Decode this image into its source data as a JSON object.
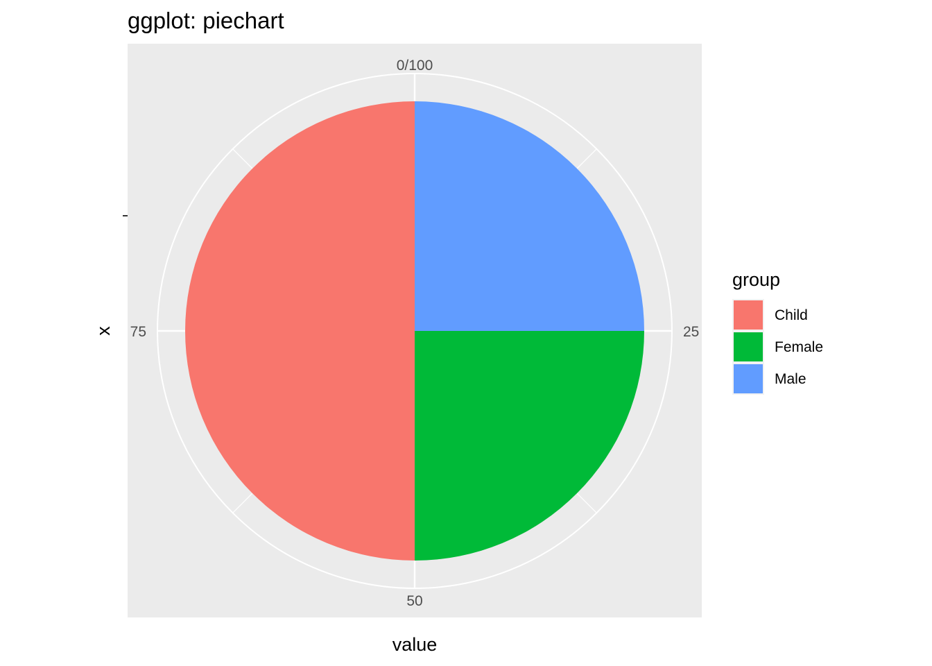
{
  "chart_data": {
    "type": "pie",
    "title": "ggplot: piechart",
    "xlabel": "value",
    "ylabel": "x",
    "theta_range": [
      0,
      100
    ],
    "theta_ticks": [
      {
        "value": 0,
        "label": "0/100"
      },
      {
        "value": 25,
        "label": "25"
      },
      {
        "value": 50,
        "label": "50"
      },
      {
        "value": 75,
        "label": "75"
      }
    ],
    "y_tick_label": "",
    "legend": {
      "title": "group",
      "placement": "right"
    },
    "slices": [
      {
        "label": "Male",
        "value": 25,
        "color": "#619CFF"
      },
      {
        "label": "Female",
        "value": 25,
        "color": "#00BA38"
      },
      {
        "label": "Child",
        "value": 50,
        "color": "#F8766D"
      }
    ],
    "legend_order": [
      "Child",
      "Female",
      "Male"
    ],
    "panel_background": "#EBEBEB",
    "grid_color": "#FFFFFF",
    "grid": true
  }
}
